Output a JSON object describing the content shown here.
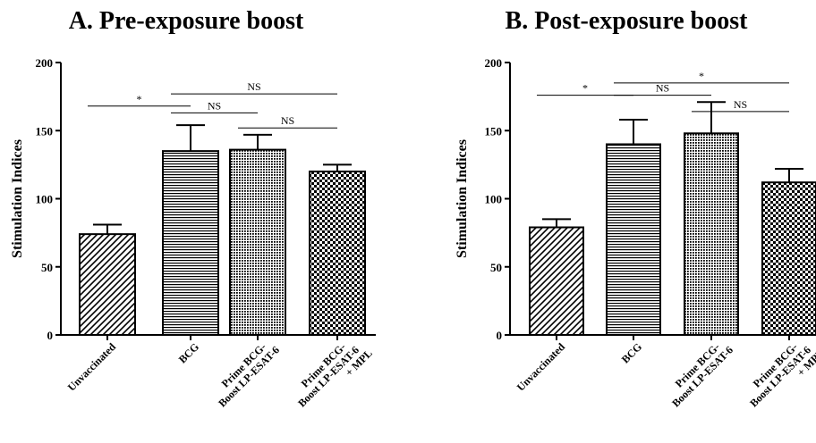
{
  "chart_data": [
    {
      "type": "bar",
      "title": "A.  Pre-exposure boost",
      "ylabel": "Stimulation Indices",
      "ylim": [
        0,
        200
      ],
      "yticks": [
        0,
        50,
        100,
        150,
        200
      ],
      "categories": [
        [
          "Unvaccinated"
        ],
        [
          "BCG"
        ],
        [
          "Prime BCG-",
          "Boost LP-ESAT-6"
        ],
        [
          "Prime BCG-",
          "Boost LP-ESAT-6",
          "+ MPL"
        ]
      ],
      "values": [
        74,
        135,
        136,
        120
      ],
      "errors": [
        7,
        19,
        11,
        5
      ],
      "patterns": [
        "diagonal",
        "horizontal",
        "dots",
        "checker"
      ],
      "comparisons": [
        {
          "from": 0,
          "to": 1,
          "label": "*",
          "y": 168
        },
        {
          "from": 1,
          "to": 3,
          "label": "NS",
          "y": 177
        },
        {
          "from": 1,
          "to": 2,
          "label": "NS",
          "y": 163
        },
        {
          "from": 2,
          "to": 3,
          "label": "NS",
          "y": 152
        }
      ]
    },
    {
      "type": "bar",
      "title": "B.  Post-exposure boost",
      "ylabel": "Stimulation Indices",
      "ylim": [
        0,
        200
      ],
      "yticks": [
        0,
        50,
        100,
        150,
        200
      ],
      "categories": [
        [
          "Unvaccinated"
        ],
        [
          "BCG"
        ],
        [
          "Prime BCG-",
          "Boost LP-ESAT-6"
        ],
        [
          "Prime BCG-",
          "Boost LP-ESAT-6",
          "+ MPL"
        ]
      ],
      "values": [
        79,
        140,
        148,
        112
      ],
      "errors": [
        6,
        18,
        23,
        10
      ],
      "patterns": [
        "diagonal",
        "horizontal",
        "dots",
        "checker"
      ],
      "comparisons": [
        {
          "from": 0,
          "to": 1,
          "label": "*",
          "y": 176
        },
        {
          "from": 1,
          "to": 3,
          "label": "*",
          "y": 185
        },
        {
          "from": 1,
          "to": 2,
          "label": "NS",
          "y": 176
        },
        {
          "from": 2,
          "to": 3,
          "label": "NS",
          "y": 164
        }
      ]
    }
  ]
}
